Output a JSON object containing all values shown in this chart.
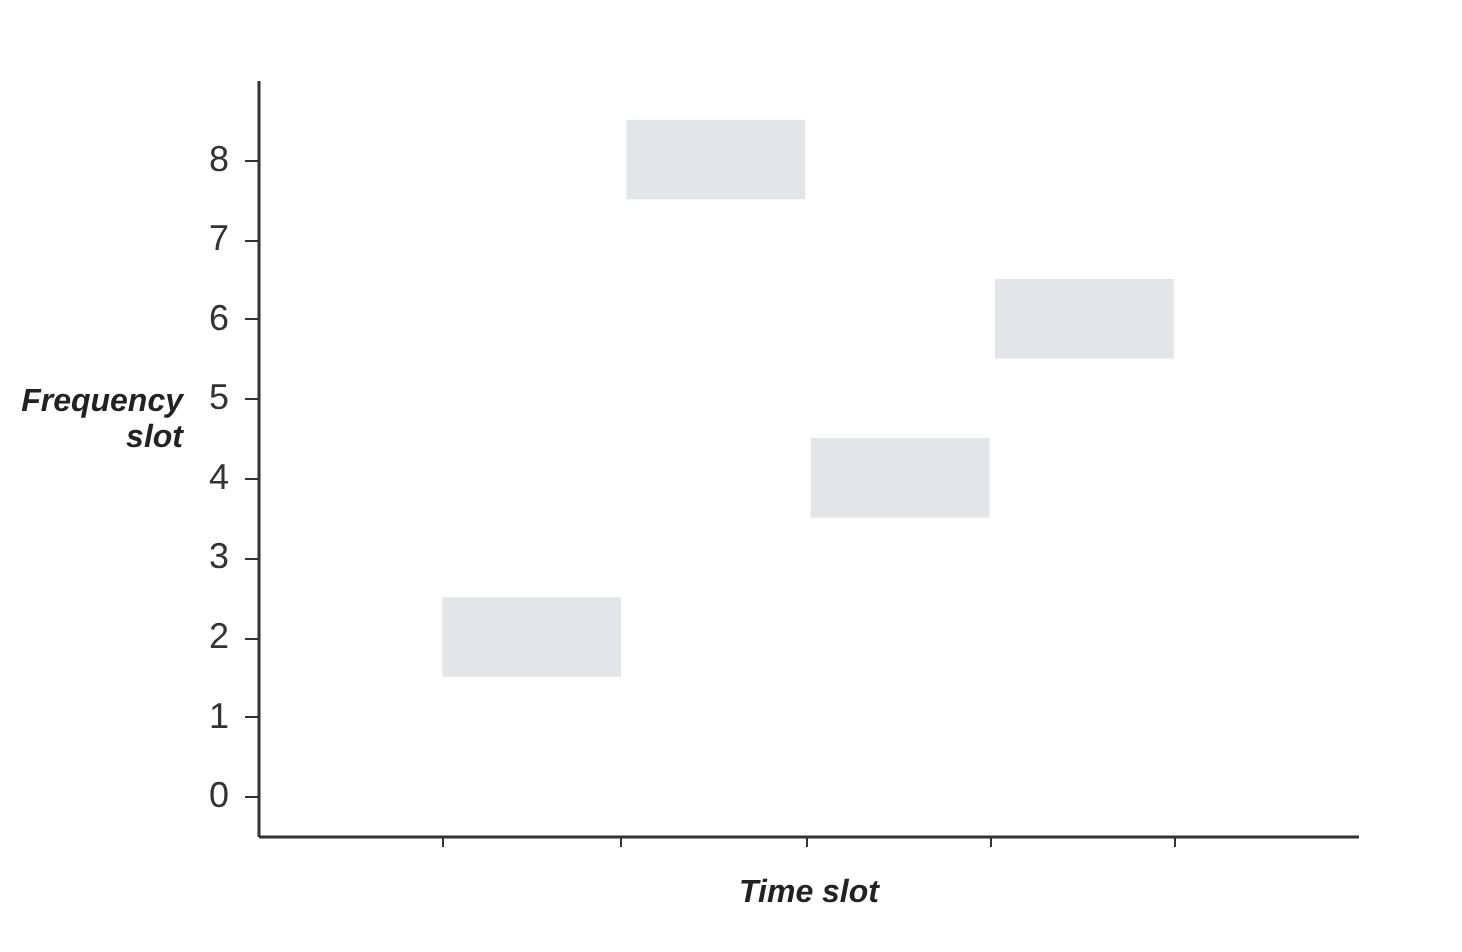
{
  "chart_data": {
    "type": "bar",
    "xlabel": "Time slot",
    "ylabel": "Frequency slot",
    "categories": [
      null,
      null,
      null,
      null
    ],
    "base": [
      1.5,
      7.5,
      3.5,
      5.5
    ],
    "values": [
      1,
      1,
      1,
      1
    ],
    "color": "#e3e5e8",
    "ylim": [
      -0.5,
      9
    ],
    "yticks": [
      0,
      1,
      2,
      3,
      4,
      5,
      6,
      7,
      8
    ],
    "tick_labels": "y",
    "grid": false
  }
}
